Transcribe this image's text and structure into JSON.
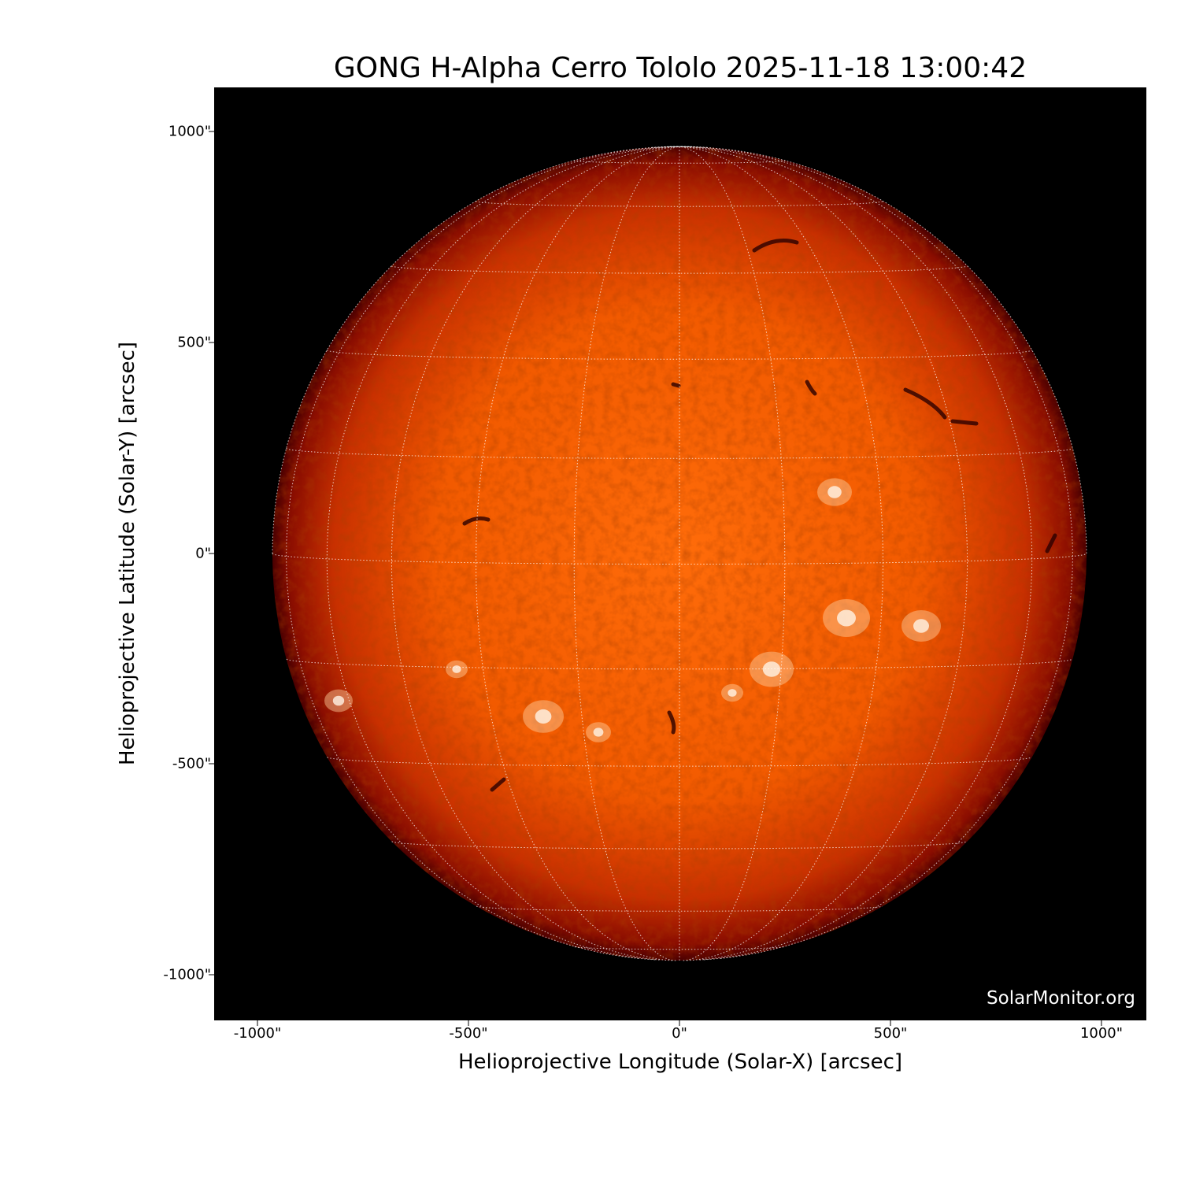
{
  "title": "GONG H-Alpha Cerro Tololo 2025-11-18 13:00:42",
  "xlabel": "Helioprojective Longitude (Solar-X) [arcsec]",
  "ylabel": "Helioprojective Latitude (Solar-Y) [arcsec]",
  "x_ticks": [
    "-1000\"",
    "-500\"",
    "0\"",
    "500\"",
    "1000\""
  ],
  "y_ticks": [
    "1000\"",
    "500\"",
    "0\"",
    "-500\"",
    "-1000\""
  ],
  "watermark": "SolarMonitor.org",
  "axis_range_arcsec": [
    -1100,
    1100
  ],
  "solar_radius_arcsec": 965,
  "grid_spacing_deg": 15,
  "colors": {
    "disk_center": "#ff6a00",
    "disk_limb": "#6a0000",
    "background": "#000000",
    "grid": "#ffffff"
  }
}
